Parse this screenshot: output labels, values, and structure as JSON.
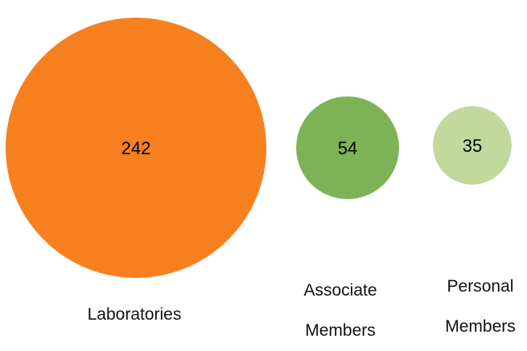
{
  "chart_data": {
    "type": "bubble",
    "categories": [
      "Laboratories",
      "Associate Members",
      "Personal Members"
    ],
    "values": [
      242,
      54,
      35
    ],
    "colors": [
      "#f7801e",
      "#7db356",
      "#c3d89c"
    ]
  }
}
